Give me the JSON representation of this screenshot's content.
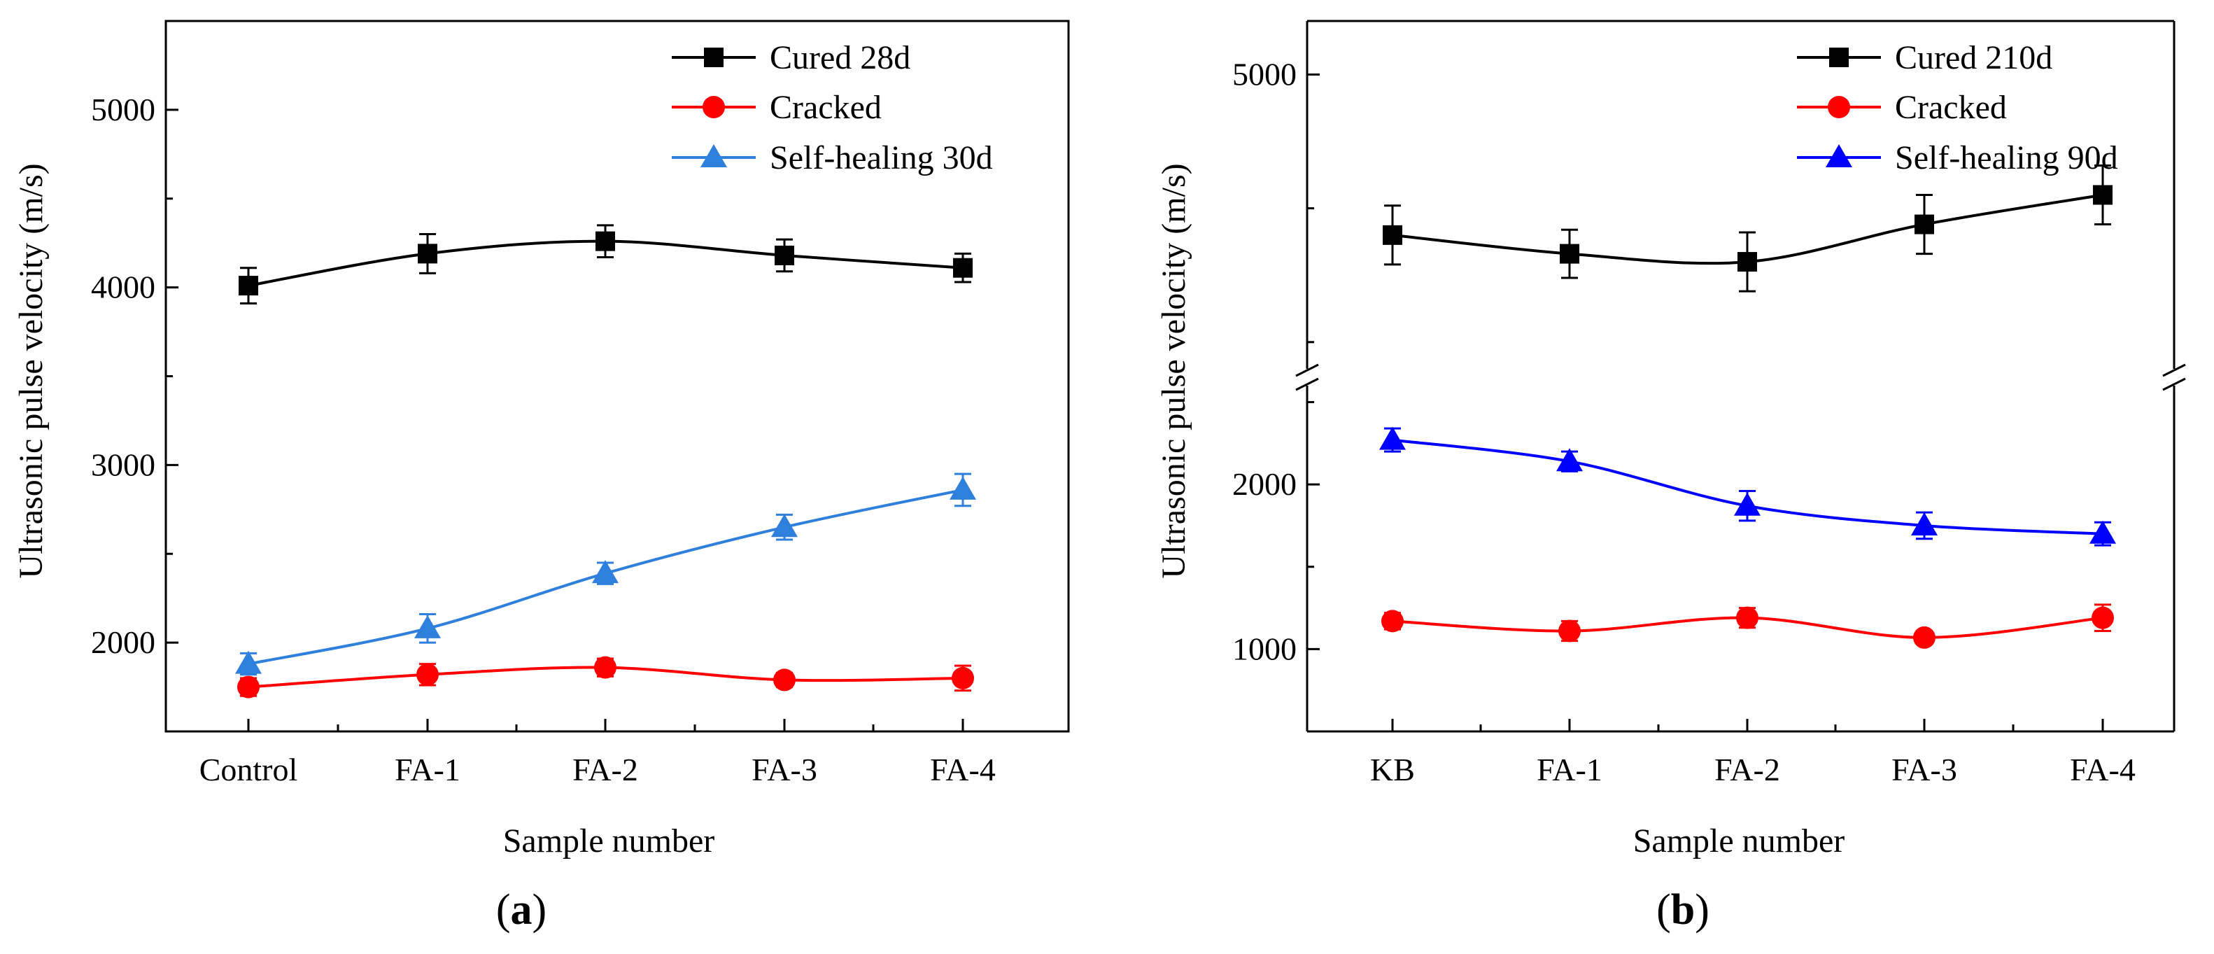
{
  "chart_data": [
    {
      "panel": "a",
      "type": "line",
      "panel_label": "a",
      "xlabel": "Sample number",
      "ylabel": "Ultrasonic pulse velocity (m/s)",
      "categories": [
        "Control",
        "FA-1",
        "FA-2",
        "FA-3",
        "FA-4"
      ],
      "ylim": [
        1500,
        5500
      ],
      "yticks": [
        2000,
        3000,
        4000,
        5000
      ],
      "legend_position": "top-right",
      "series": [
        {
          "name": "Cured 28d",
          "color": "#000000",
          "marker": "square",
          "values": [
            4010,
            4190,
            4260,
            4180,
            4110
          ],
          "errors": [
            100,
            110,
            90,
            90,
            80
          ]
        },
        {
          "name": "Cracked",
          "color": "#ff0000",
          "marker": "circle",
          "values": [
            1750,
            1820,
            1860,
            1790,
            1800
          ],
          "errors": [
            50,
            60,
            50,
            40,
            70
          ]
        },
        {
          "name": "Self-healing 30d",
          "color": "#2f7fdc",
          "marker": "triangle",
          "values": [
            1880,
            2080,
            2390,
            2650,
            2860
          ],
          "errors": [
            60,
            80,
            60,
            70,
            90
          ]
        }
      ]
    },
    {
      "panel": "b",
      "type": "line",
      "panel_label": "b",
      "xlabel": "Sample number",
      "ylabel": "Ultrasonic pulse velocity (m/s)",
      "categories": [
        "KB",
        "FA-1",
        "FA-2",
        "FA-3",
        "FA-4"
      ],
      "y_axis_break": true,
      "lower_ylim": [
        500,
        2600
      ],
      "upper_ylim": [
        3900,
        5200
      ],
      "yticks": [
        1000,
        2000,
        5000
      ],
      "legend_position": "top-right",
      "series": [
        {
          "name": "Cured 210d",
          "color": "#000000",
          "marker": "square",
          "values": [
            4400,
            4330,
            4300,
            4440,
            4550
          ],
          "errors": [
            110,
            90,
            110,
            110,
            110
          ]
        },
        {
          "name": "Cracked",
          "color": "#ff0000",
          "marker": "circle",
          "values": [
            1170,
            1110,
            1190,
            1070,
            1190
          ],
          "errors": [
            50,
            60,
            60,
            40,
            80
          ]
        },
        {
          "name": "Self-healing 90d",
          "color": "#0000ff",
          "marker": "triangle",
          "values": [
            2270,
            2140,
            1870,
            1750,
            1700
          ],
          "errors": [
            70,
            60,
            90,
            80,
            70
          ]
        }
      ]
    }
  ]
}
